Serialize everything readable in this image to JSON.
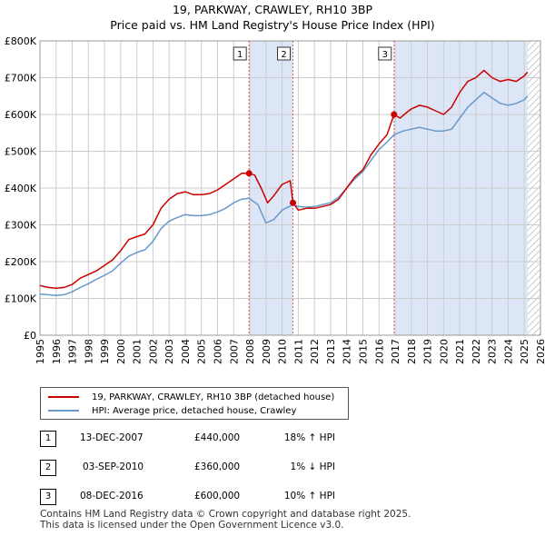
{
  "title": "19, PARKWAY, CRAWLEY, RH10 3BP",
  "subtitle": "Price paid vs. HM Land Registry's House Price Index (HPI)",
  "colors": {
    "property": "#cc0000",
    "hpi": "#6699cc",
    "shade": "#dde6f6",
    "grid": "#cccccc"
  },
  "chart_data": {
    "type": "line",
    "xlim": [
      1995,
      2026
    ],
    "ylim": [
      0,
      800000
    ],
    "x_ticks": [
      "1995",
      "1996",
      "1997",
      "1998",
      "1999",
      "2000",
      "2001",
      "2002",
      "2003",
      "2004",
      "2005",
      "2006",
      "2007",
      "2008",
      "2009",
      "2010",
      "2011",
      "2012",
      "2013",
      "2014",
      "2015",
      "2016",
      "2017",
      "2018",
      "2019",
      "2020",
      "2021",
      "2022",
      "2023",
      "2024",
      "2025",
      "2026"
    ],
    "y_ticks": [
      {
        "value": 0,
        "label": "£0"
      },
      {
        "value": 100000,
        "label": "£100K"
      },
      {
        "value": 200000,
        "label": "£200K"
      },
      {
        "value": 300000,
        "label": "£300K"
      },
      {
        "value": 400000,
        "label": "£400K"
      },
      {
        "value": 500000,
        "label": "£500K"
      },
      {
        "value": 600000,
        "label": "£600K"
      },
      {
        "value": 700000,
        "label": "£700K"
      },
      {
        "value": 800000,
        "label": "£800K"
      }
    ],
    "grid": true,
    "shaded_periods": [
      [
        2007.95,
        2010.67
      ],
      [
        2016.93,
        2025.2
      ]
    ],
    "future_hatch_from": 2025.2,
    "series": [
      {
        "name": "19, PARKWAY, CRAWLEY, RH10 3BP (detached house)",
        "color": "#cc0000",
        "points": [
          [
            1995,
            135000
          ],
          [
            1995.5,
            130000
          ],
          [
            1996,
            128000
          ],
          [
            1996.5,
            130000
          ],
          [
            1997,
            138000
          ],
          [
            1997.5,
            155000
          ],
          [
            1998,
            165000
          ],
          [
            1998.5,
            175000
          ],
          [
            1999,
            190000
          ],
          [
            1999.5,
            205000
          ],
          [
            2000,
            230000
          ],
          [
            2000.5,
            260000
          ],
          [
            2001,
            268000
          ],
          [
            2001.5,
            275000
          ],
          [
            2002,
            300000
          ],
          [
            2002.5,
            345000
          ],
          [
            2003,
            370000
          ],
          [
            2003.5,
            385000
          ],
          [
            2004,
            390000
          ],
          [
            2004.5,
            382000
          ],
          [
            2005,
            382000
          ],
          [
            2005.5,
            385000
          ],
          [
            2006,
            395000
          ],
          [
            2006.5,
            410000
          ],
          [
            2007,
            425000
          ],
          [
            2007.5,
            440000
          ],
          [
            2007.95,
            440000
          ],
          [
            2008.3,
            435000
          ],
          [
            2008.7,
            400000
          ],
          [
            2009.1,
            360000
          ],
          [
            2009.5,
            380000
          ],
          [
            2010,
            410000
          ],
          [
            2010.5,
            420000
          ],
          [
            2010.67,
            360000
          ],
          [
            2011,
            340000
          ],
          [
            2011.5,
            345000
          ],
          [
            2012,
            345000
          ],
          [
            2012.5,
            350000
          ],
          [
            2013,
            355000
          ],
          [
            2013.5,
            370000
          ],
          [
            2014,
            400000
          ],
          [
            2014.5,
            430000
          ],
          [
            2015,
            450000
          ],
          [
            2015.5,
            490000
          ],
          [
            2016,
            520000
          ],
          [
            2016.5,
            545000
          ],
          [
            2016.93,
            600000
          ],
          [
            2017.3,
            590000
          ],
          [
            2017.7,
            605000
          ],
          [
            2018,
            615000
          ],
          [
            2018.5,
            625000
          ],
          [
            2019,
            620000
          ],
          [
            2019.5,
            610000
          ],
          [
            2020,
            600000
          ],
          [
            2020.5,
            620000
          ],
          [
            2021,
            660000
          ],
          [
            2021.5,
            690000
          ],
          [
            2022,
            700000
          ],
          [
            2022.5,
            720000
          ],
          [
            2023,
            700000
          ],
          [
            2023.5,
            690000
          ],
          [
            2024,
            695000
          ],
          [
            2024.5,
            690000
          ],
          [
            2025,
            705000
          ],
          [
            2025.2,
            715000
          ]
        ]
      },
      {
        "name": "HPI: Average price, detached house, Crawley",
        "color": "#6699cc",
        "points": [
          [
            1995,
            112000
          ],
          [
            1995.5,
            110000
          ],
          [
            1996,
            108000
          ],
          [
            1996.5,
            110000
          ],
          [
            1997,
            118000
          ],
          [
            1997.5,
            130000
          ],
          [
            1998,
            140000
          ],
          [
            1998.5,
            152000
          ],
          [
            1999,
            163000
          ],
          [
            1999.5,
            175000
          ],
          [
            2000,
            196000
          ],
          [
            2000.5,
            215000
          ],
          [
            2001,
            225000
          ],
          [
            2001.5,
            232000
          ],
          [
            2002,
            255000
          ],
          [
            2002.5,
            290000
          ],
          [
            2003,
            310000
          ],
          [
            2003.5,
            320000
          ],
          [
            2004,
            328000
          ],
          [
            2004.5,
            325000
          ],
          [
            2005,
            325000
          ],
          [
            2005.5,
            328000
          ],
          [
            2006,
            335000
          ],
          [
            2006.5,
            345000
          ],
          [
            2007,
            360000
          ],
          [
            2007.5,
            370000
          ],
          [
            2007.95,
            372000
          ],
          [
            2008.5,
            355000
          ],
          [
            2009,
            305000
          ],
          [
            2009.5,
            315000
          ],
          [
            2010,
            340000
          ],
          [
            2010.67,
            355000
          ],
          [
            2011,
            350000
          ],
          [
            2011.5,
            348000
          ],
          [
            2012,
            350000
          ],
          [
            2012.5,
            355000
          ],
          [
            2013,
            360000
          ],
          [
            2013.5,
            375000
          ],
          [
            2014,
            400000
          ],
          [
            2014.5,
            425000
          ],
          [
            2015,
            445000
          ],
          [
            2015.5,
            475000
          ],
          [
            2016,
            505000
          ],
          [
            2016.5,
            525000
          ],
          [
            2016.93,
            545000
          ],
          [
            2017.5,
            555000
          ],
          [
            2018,
            560000
          ],
          [
            2018.5,
            565000
          ],
          [
            2019,
            560000
          ],
          [
            2019.5,
            555000
          ],
          [
            2020,
            555000
          ],
          [
            2020.5,
            560000
          ],
          [
            2021,
            590000
          ],
          [
            2021.5,
            620000
          ],
          [
            2022,
            640000
          ],
          [
            2022.5,
            660000
          ],
          [
            2023,
            645000
          ],
          [
            2023.5,
            630000
          ],
          [
            2024,
            625000
          ],
          [
            2024.5,
            630000
          ],
          [
            2025,
            640000
          ],
          [
            2025.2,
            650000
          ]
        ]
      }
    ],
    "sale_markers": [
      {
        "label": "1",
        "x": 2007.95,
        "y": 440000
      },
      {
        "label": "2",
        "x": 2010.67,
        "y": 360000
      },
      {
        "label": "3",
        "x": 2016.93,
        "y": 600000
      }
    ]
  },
  "legend": {
    "property_label": "19, PARKWAY, CRAWLEY, RH10 3BP (detached house)",
    "hpi_label": "HPI: Average price, detached house, Crawley"
  },
  "sales": [
    {
      "num": "1",
      "date": "13-DEC-2007",
      "price": "£440,000",
      "hpi": "18% ↑ HPI"
    },
    {
      "num": "2",
      "date": "03-SEP-2010",
      "price": "£360,000",
      "hpi": "1% ↓ HPI"
    },
    {
      "num": "3",
      "date": "08-DEC-2016",
      "price": "£600,000",
      "hpi": "10% ↑ HPI"
    }
  ],
  "footer": {
    "line1": "Contains HM Land Registry data © Crown copyright and database right 2025.",
    "line2": "This data is licensed under the Open Government Licence v3.0."
  }
}
